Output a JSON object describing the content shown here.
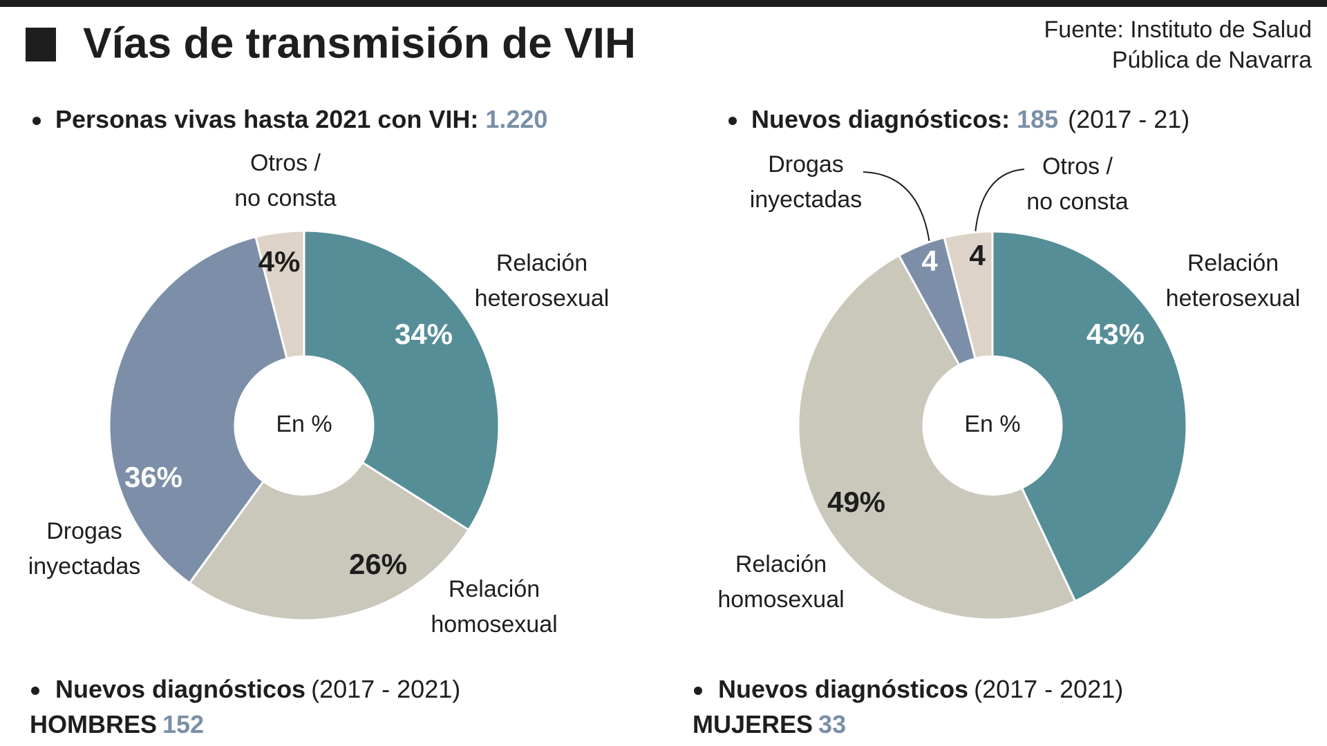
{
  "header": {
    "title": "Vías de transmisión de VIH",
    "source": "Fuente: Instituto de Salud\nPública de Navarra"
  },
  "chart_data": [
    {
      "type": "pie",
      "subtitle": "Personas vivas hasta 2021 con VIH:",
      "total": {
        "value": 1220,
        "label": "1.220"
      },
      "center_label": "En %",
      "categories": [
        "Relación\nheterosexual",
        "Relación\nhomosexual",
        "Drogas\ninyectadas",
        "Otros /\nno consta"
      ],
      "values": [
        34,
        26,
        36,
        4
      ],
      "value_labels": [
        "34%",
        "26%",
        "36%",
        "4%"
      ],
      "colors": [
        "#568e98",
        "#c9c8bb",
        "#7d8fa8",
        "#ddd3c9"
      ],
      "footer": {
        "title": "Nuevos diagnósticos",
        "period": "(2017 - 2021)",
        "group": "HOMBRES",
        "count": 152
      }
    },
    {
      "type": "pie",
      "subtitle": "Nuevos diagnósticos:",
      "total": 185,
      "period": "(2017 - 21)",
      "center_label": "En %",
      "categories": [
        "Relación\nheterosexual",
        "Relación\nhomosexual",
        "Drogas\ninyectadas",
        "Otros /\nno consta"
      ],
      "values": [
        43,
        49,
        4,
        4
      ],
      "value_labels": [
        "43%",
        "49%",
        "4",
        "4"
      ],
      "colors": [
        "#568e98",
        "#c9c8bb",
        "#7d8fa8",
        "#ddd3c9"
      ],
      "footer": {
        "title": "Nuevos diagnósticos",
        "period": "(2017 - 2021)",
        "group": "MUJERES",
        "count": 33
      }
    }
  ]
}
